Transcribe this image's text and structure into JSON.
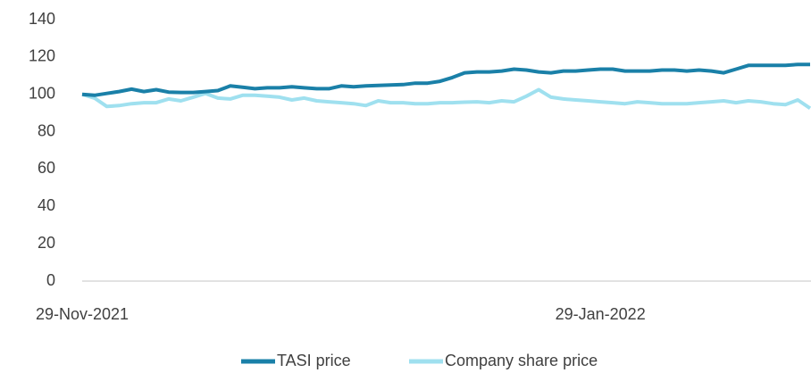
{
  "chart_data": {
    "type": "line",
    "categories": [
      "29-Nov-2021",
      null,
      null,
      null,
      null,
      null,
      null,
      null,
      null,
      null,
      null,
      null,
      null,
      null,
      null,
      null,
      null,
      null,
      null,
      null,
      null,
      null,
      null,
      null,
      null,
      null,
      null,
      null,
      null,
      null,
      null,
      null,
      null,
      null,
      null,
      null,
      null,
      null,
      null,
      null,
      null,
      null,
      "29-Jan-2022",
      null,
      null,
      null,
      null,
      null,
      null,
      null,
      null,
      null,
      null,
      null,
      null,
      null,
      null,
      null,
      null,
      null
    ],
    "series": [
      {
        "name": "TASI price",
        "color": "#1a80a8",
        "values": [
          100,
          99.5,
          100.5,
          101.5,
          102.8,
          101.5,
          102.5,
          101.2,
          101,
          101,
          101.5,
          102,
          104.5,
          103.8,
          103,
          103.5,
          103.5,
          104,
          103.5,
          103,
          103,
          104.5,
          104,
          104.5,
          104.8,
          105,
          105.2,
          106,
          106,
          107,
          109,
          111.5,
          112,
          112,
          112.5,
          113.5,
          113,
          112,
          111.5,
          112.5,
          112.5,
          113,
          113.5,
          113.5,
          112.5,
          112.5,
          112.5,
          113,
          113,
          112.5,
          113,
          112.5,
          111.5,
          113.5,
          115.5,
          115.5,
          115.5,
          115.5,
          116,
          116
        ]
      },
      {
        "name": "Company share price",
        "color": "#9fe0ef",
        "values": [
          100,
          98,
          93.5,
          94,
          95,
          95.5,
          95.5,
          97.5,
          96.5,
          98.5,
          100.5,
          98,
          97.5,
          99.5,
          99.5,
          99,
          98.5,
          97,
          98,
          96.5,
          96,
          95.5,
          95,
          94,
          96.5,
          95.5,
          95.5,
          95,
          95,
          95.5,
          95.5,
          95.8,
          96,
          95.5,
          96.5,
          96,
          99,
          102.5,
          98.5,
          97.5,
          97,
          96.5,
          96,
          95.5,
          95,
          96,
          95.5,
          95,
          95,
          95,
          95.5,
          96,
          96.5,
          95.5,
          96.5,
          96,
          95,
          94.5,
          97,
          92.5
        ]
      }
    ],
    "ylim": [
      0,
      140
    ],
    "yticks": [
      0,
      20,
      40,
      60,
      80,
      100,
      120,
      140
    ],
    "grid": false,
    "legend": "bottom"
  }
}
